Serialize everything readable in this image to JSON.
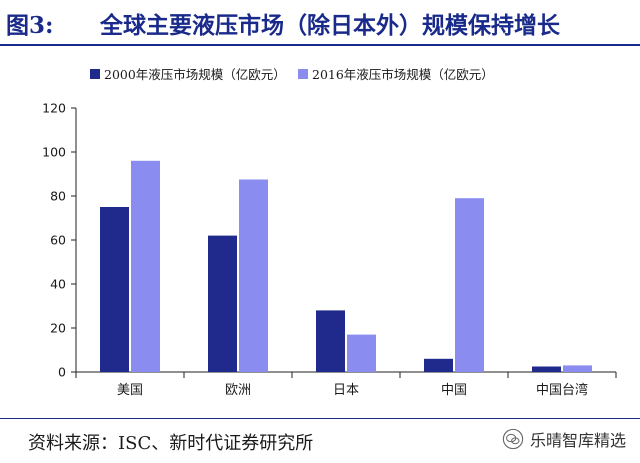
{
  "header": {
    "figure_label": "图3:",
    "title": "全球主要液压市场（除日本外）规模保持增长"
  },
  "footer": {
    "source": "资料来源：ISC、新时代证券研究所",
    "watermark_text": "乐晴智库精选"
  },
  "chart_data": {
    "type": "bar",
    "title": "",
    "xlabel": "",
    "ylabel": "",
    "categories": [
      "美国",
      "欧洲",
      "日本",
      "中国",
      "中国台湾"
    ],
    "series": [
      {
        "name": "2000年液压市场规模（亿欧元）",
        "values": [
          75,
          62,
          28,
          6,
          2.5
        ]
      },
      {
        "name": "2016年液压市场规模（亿欧元）",
        "values": [
          96,
          87.5,
          17,
          79,
          3
        ]
      }
    ],
    "ylim": [
      0,
      120
    ],
    "yticks": [
      0,
      20,
      40,
      60,
      80,
      100,
      120
    ],
    "legend_position": "top",
    "grid": false,
    "colors": {
      "series_0": "#1f2a8c",
      "series_1": "#8a8cf0",
      "axis": "#222222"
    }
  }
}
